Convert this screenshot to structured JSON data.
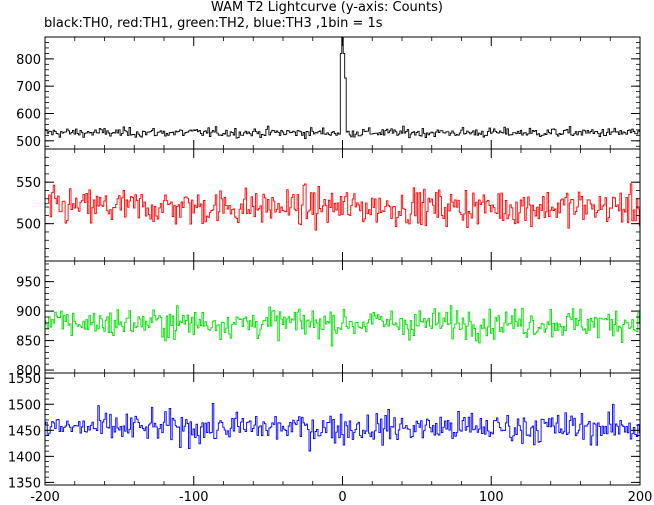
{
  "chart_data": {
    "type": "line",
    "title": "WAM T2 Lightcurve (y-axis: Counts)",
    "subtitle": "black:TH0, red:TH1, green:TH2, blue:TH3 ,1bin = 1s",
    "xlabel": "",
    "ylabel": "",
    "xlim": [
      -200,
      200
    ],
    "x_ticks": [
      -200,
      -100,
      0,
      100,
      200
    ],
    "panels": [
      {
        "name": "TH0",
        "color": "#000000",
        "ylim": [
          470,
          880
        ],
        "y_ticks": [
          500,
          600,
          700,
          800
        ],
        "baseline": 530,
        "noise": 22,
        "spike": {
          "x": 0,
          "peak": 880
        }
      },
      {
        "name": "TH1",
        "color": "#ff0000",
        "ylim": [
          455,
          590
        ],
        "y_ticks": [
          500,
          550
        ],
        "baseline": 520,
        "noise": 28,
        "spike": null
      },
      {
        "name": "TH2",
        "color": "#00dd00",
        "ylim": [
          795,
          985
        ],
        "y_ticks": [
          800,
          850,
          900,
          950
        ],
        "baseline": 880,
        "noise": 32,
        "spike": null
      },
      {
        "name": "TH3",
        "color": "#0000ff",
        "ylim": [
          1345,
          1560
        ],
        "y_ticks": [
          1350,
          1400,
          1450,
          1500,
          1550
        ],
        "baseline": 1455,
        "noise": 38,
        "spike": null
      }
    ]
  }
}
